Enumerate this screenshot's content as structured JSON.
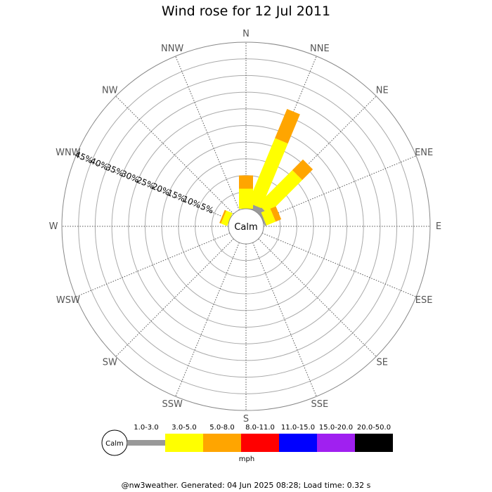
{
  "title": "Wind rose for 12 Jul 2011",
  "footer": "@nw3weather. Generated: 04 Jun 2025 08:28; Load time: 0.32 s",
  "calm_label": "Calm",
  "unit_label": "mph",
  "directions": [
    "N",
    "NNE",
    "NE",
    "ENE",
    "E",
    "ESE",
    "SE",
    "SSE",
    "S",
    "SSW",
    "SW",
    "WSW",
    "W",
    "WNW",
    "NW",
    "NNW"
  ],
  "radial_ticks": [
    "5%",
    "10%",
    "15%",
    "20%",
    "25%",
    "30%",
    "35%",
    "40%",
    "45%"
  ],
  "speed_bins": [
    {
      "range": "1.0-3.0",
      "color": "#999999"
    },
    {
      "range": "3.0-5.0",
      "color": "#ffff00"
    },
    {
      "range": "5.0-8.0",
      "color": "#ffa500"
    },
    {
      "range": "8.0-11.0",
      "color": "#ff0000"
    },
    {
      "range": "11.0-15.0",
      "color": "#0000ff"
    },
    {
      "range": "15.0-20.0",
      "color": "#a020f0"
    },
    {
      "range": "20.0-50.0",
      "color": "#000000"
    }
  ],
  "chart_data": {
    "type": "wind-rose",
    "title": "Wind rose for 12 Jul 2011",
    "radial_unit": "%",
    "radial_max": 50,
    "radial_ticks": [
      5,
      10,
      15,
      20,
      25,
      30,
      35,
      40,
      45
    ],
    "series": [
      {
        "name": "1.0-3.0",
        "values": {
          "NNE": 1.5,
          "NE": 2.0,
          "ENE": 0.5
        }
      },
      {
        "name": "3.0-5.0",
        "values": {
          "N": 6.0,
          "NNE": 21.0,
          "NE": 14.5,
          "ENE": 3.0,
          "WNW": 2.0
        }
      },
      {
        "name": "5.0-8.0",
        "values": {
          "N": 4.0,
          "NNE": 9.5,
          "NE": 4.5,
          "ENE": 1.8,
          "WNW": 0.5
        }
      }
    ]
  }
}
